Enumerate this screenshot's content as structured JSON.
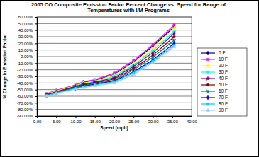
{
  "chart_data": {
    "type": "line",
    "title": "2005 CO Composite Emission Factor Percent Change vs. Speed for Range of Temperatures with I/M Programs",
    "x_label": "Speed (mph)",
    "y_label": "% Change in Emission Factor",
    "x": [
      2.5,
      5,
      10,
      12,
      15,
      20,
      25,
      30,
      35.5
    ],
    "xlim": [
      0,
      40
    ],
    "xticks": [
      {
        "value": 0,
        "label": "0.00"
      },
      {
        "value": 5,
        "label": "5.00"
      },
      {
        "value": 10,
        "label": "10.00"
      },
      {
        "value": 15,
        "label": "15.00"
      },
      {
        "value": 20,
        "label": "20.00"
      },
      {
        "value": 25,
        "label": "25.00"
      },
      {
        "value": 30,
        "label": "30.00"
      },
      {
        "value": 35,
        "label": "35.00"
      },
      {
        "value": 40,
        "label": "40.00"
      }
    ],
    "ylim": [
      -90,
      60
    ],
    "yticks": [
      {
        "value": -90,
        "label": "-90.00%"
      },
      {
        "value": -80,
        "label": "-80.00%"
      },
      {
        "value": -70,
        "label": "-70.00%"
      },
      {
        "value": -60,
        "label": "-60.00%"
      },
      {
        "value": -50,
        "label": "-50.00%"
      },
      {
        "value": -40,
        "label": "-40.00%"
      },
      {
        "value": -30,
        "label": "-30.00%"
      },
      {
        "value": -20,
        "label": "-20.00%"
      },
      {
        "value": -10,
        "label": "-10.00%"
      },
      {
        "value": 0,
        "label": "0.00%"
      },
      {
        "value": 10,
        "label": "10.00%"
      },
      {
        "value": 20,
        "label": "20.00%"
      },
      {
        "value": 30,
        "label": "30.00%"
      },
      {
        "value": 40,
        "label": "40.00%"
      },
      {
        "value": 50,
        "label": "50.00%"
      },
      {
        "value": 60,
        "label": "60.00%"
      }
    ],
    "grid": true,
    "legend": "right",
    "series": [
      {
        "name": "0 F",
        "color": "#000080",
        "marker": "diamond",
        "values": [
          -57,
          -52,
          -44,
          -39,
          -36,
          -27,
          -8,
          16,
          45
        ]
      },
      {
        "name": "10 F",
        "color": "#ff00ff",
        "marker": "square",
        "values": [
          -56,
          -51,
          -43,
          -38,
          -35,
          -25,
          -6,
          18,
          48
        ]
      },
      {
        "name": "20 F",
        "color": "#ffff00",
        "marker": "triangle",
        "values": [
          -57,
          -52,
          -44,
          -40,
          -37,
          -28,
          -10,
          13,
          43
        ]
      },
      {
        "name": "30 F",
        "color": "#00ffff",
        "marker": "cross",
        "values": [
          -58,
          -53,
          -45,
          -41,
          -38,
          -30,
          -13,
          9,
          38
        ]
      },
      {
        "name": "40 F",
        "color": "#800080",
        "marker": "star",
        "values": [
          -58,
          -53,
          -45,
          -42,
          -39,
          -32,
          -15,
          6,
          35
        ]
      },
      {
        "name": "50 F",
        "color": "#800000",
        "marker": "circle",
        "values": [
          -58,
          -54,
          -46,
          -43,
          -40,
          -34,
          -18,
          2,
          30
        ]
      },
      {
        "name": "60 F",
        "color": "#008080",
        "marker": "wye",
        "values": [
          -59,
          -54,
          -47,
          -44,
          -41,
          -36,
          -20,
          -1,
          25
        ]
      },
      {
        "name": "70 F",
        "color": "#0000ff",
        "marker": "diamond",
        "values": [
          -59,
          -55,
          -48,
          -45,
          -42,
          -37,
          -23,
          -5,
          20
        ]
      },
      {
        "name": "80 F",
        "color": "#00ccff",
        "marker": "square",
        "values": [
          -59,
          -55,
          -48,
          -46,
          -43,
          -38,
          -25,
          -7,
          17
        ]
      },
      {
        "name": "90 F",
        "color": "#99ccff",
        "marker": "triangle",
        "values": [
          -60,
          -56,
          -49,
          -47,
          -44,
          -40,
          -27,
          -9,
          15
        ]
      }
    ]
  }
}
